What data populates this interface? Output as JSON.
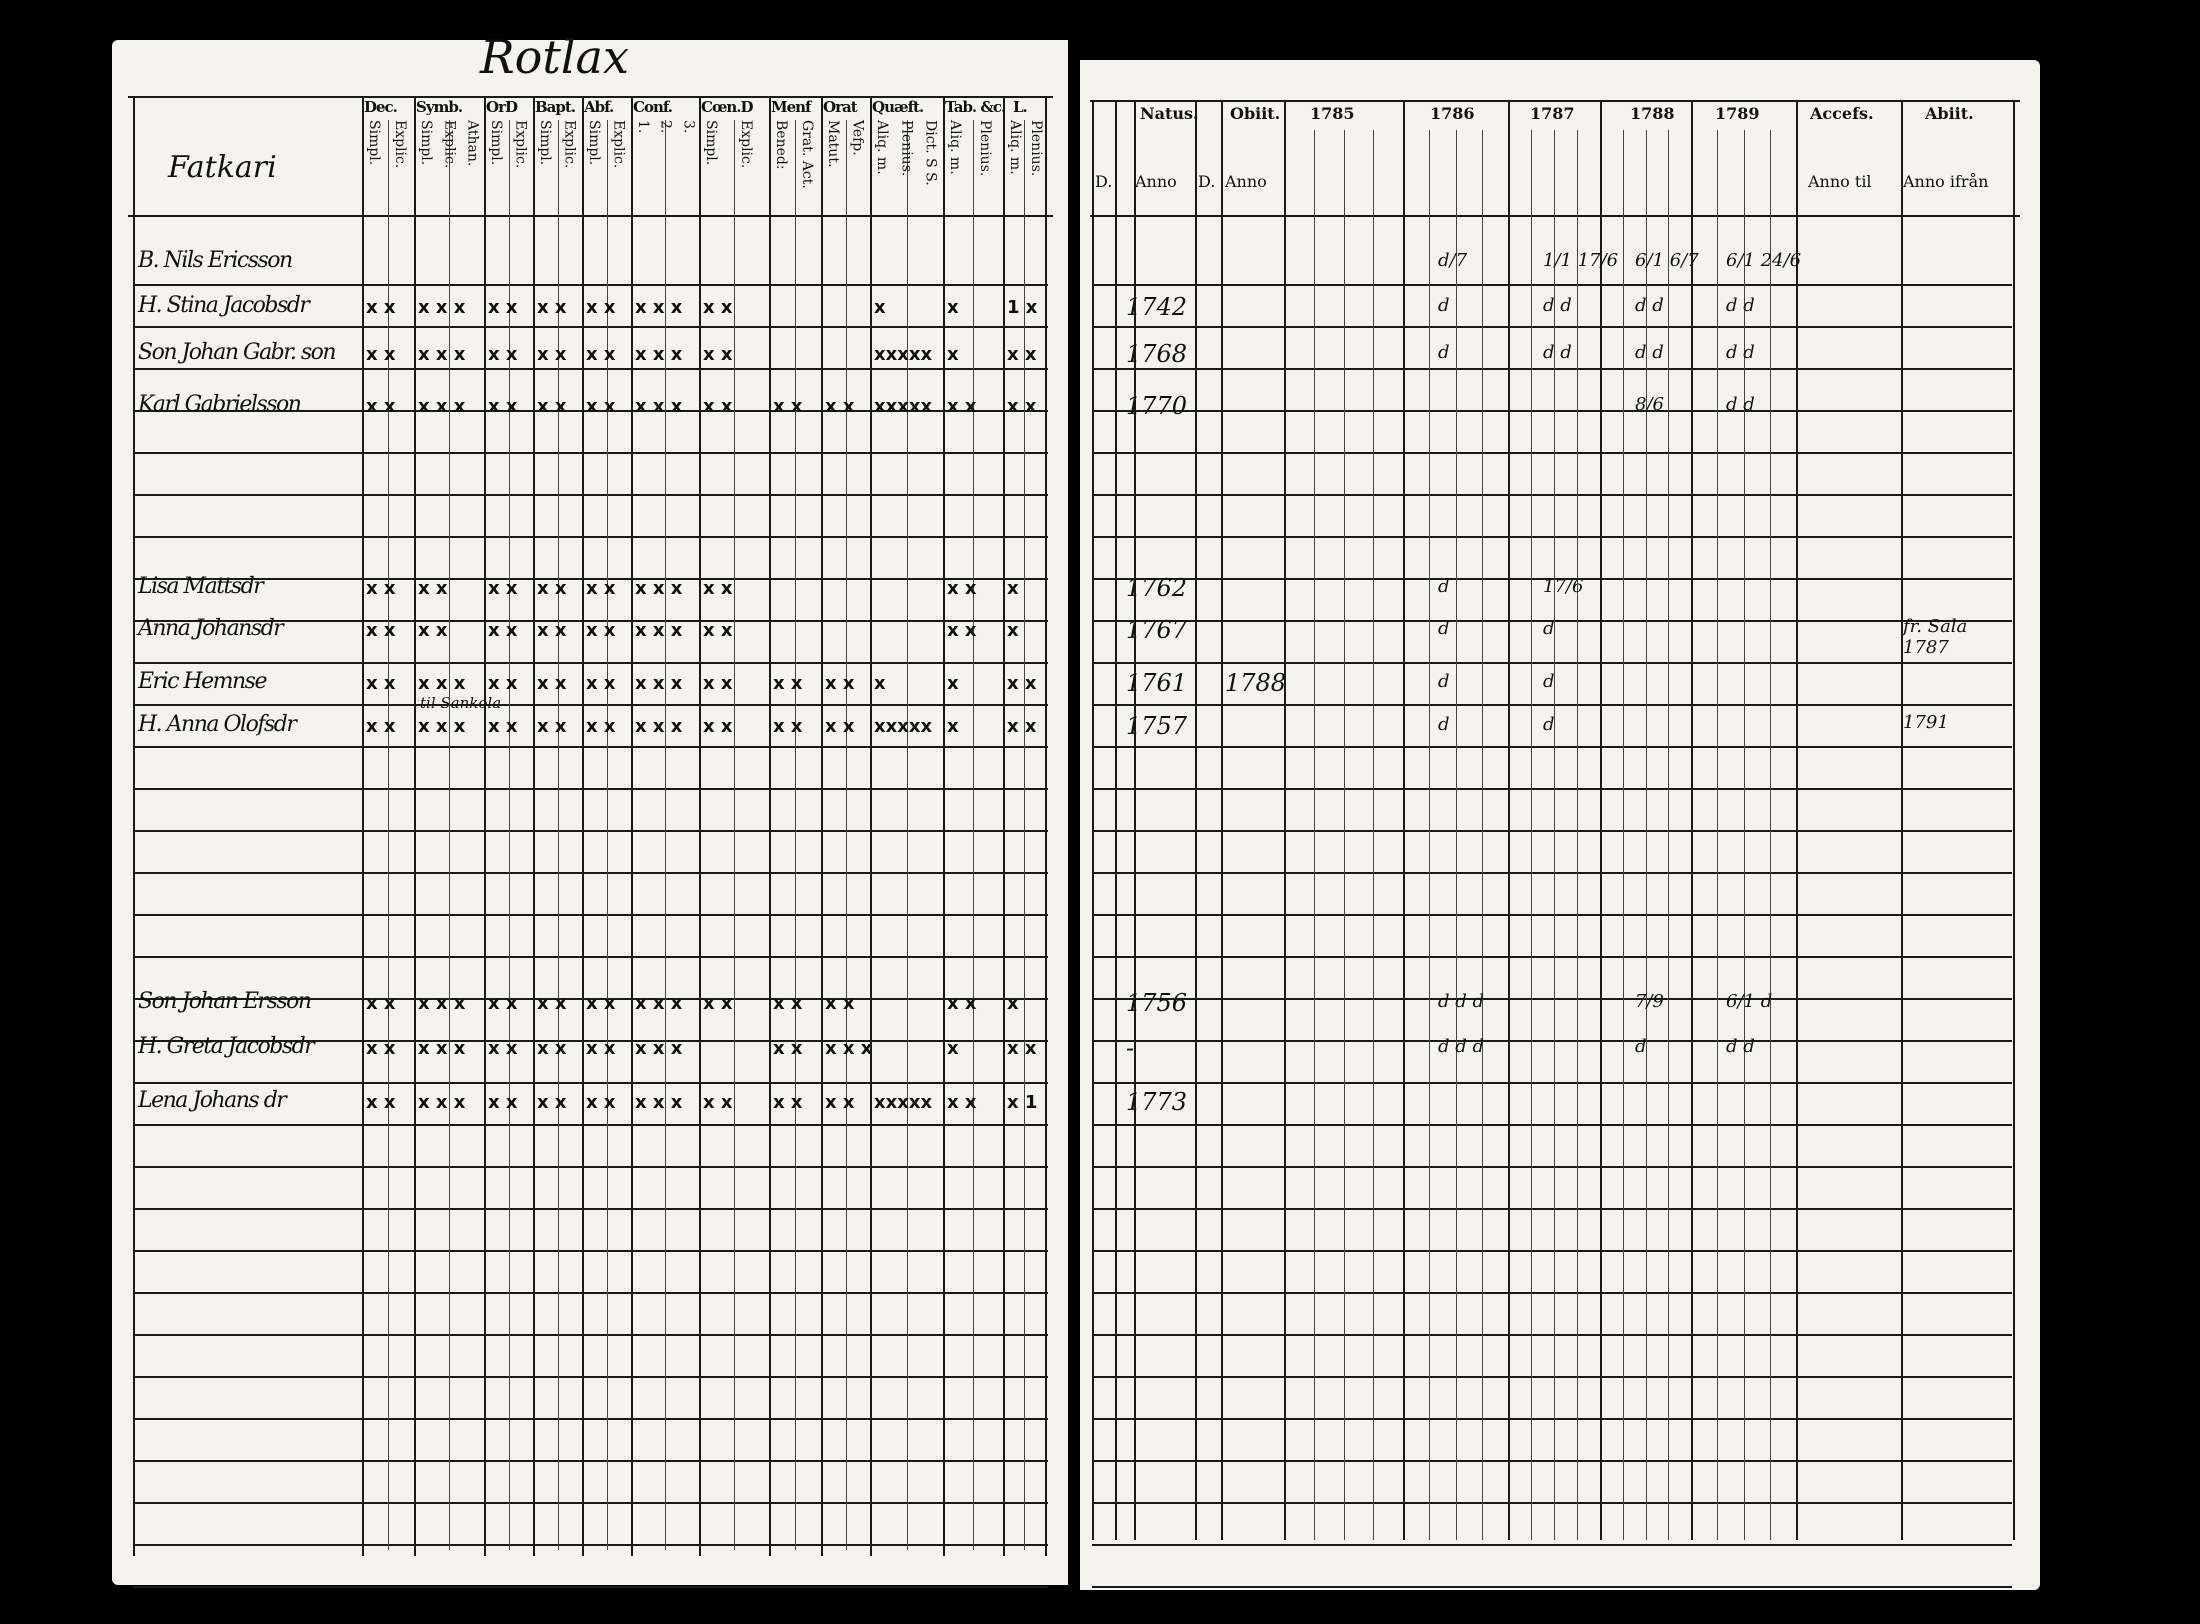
{
  "left_page": {
    "village": "Rotlax",
    "name_header": "Fatkari",
    "columns": [
      {
        "label": "Dec.",
        "subs": [
          "Simpl.",
          "Explic."
        ]
      },
      {
        "label": "Symb.",
        "subs": [
          "Simpl.",
          "Explic.",
          "Athan."
        ]
      },
      {
        "label": "OrD",
        "subs": [
          "Simpl.",
          "Explic."
        ]
      },
      {
        "label": "Bapt.",
        "subs": [
          "Simpl.",
          "Explic."
        ]
      },
      {
        "label": "Abf.",
        "subs": [
          "Simpl.",
          "Explic."
        ]
      },
      {
        "label": "Conf.",
        "subs": [
          "1.",
          "2.",
          "3."
        ]
      },
      {
        "label": "Cœn.D",
        "subs": [
          "Simpl.",
          "Explic."
        ]
      },
      {
        "label": "Menf",
        "subs": [
          "Bened:",
          "Grat. Act."
        ]
      },
      {
        "label": "Orat",
        "subs": [
          "Matut.",
          "Vefp."
        ]
      },
      {
        "label": "Quæft.",
        "subs": [
          "Aliq. m.",
          "Plenius.",
          "Dict. S S."
        ]
      },
      {
        "label": "Tab. &c.",
        "subs": [
          "Aliq. m.",
          "Plenius."
        ]
      },
      {
        "label": "L.",
        "subs": [
          "Aliq. m.",
          "Plenius."
        ]
      }
    ],
    "annotation": "til Sankola"
  },
  "right_page": {
    "headers": [
      "Natus.",
      "Obiit.",
      "1785",
      "1786",
      "1787",
      "1788",
      "1789",
      "Accefs.",
      "Abiit."
    ],
    "subheaders": {
      "natus_d": "D.",
      "natus_anno": "Anno",
      "obiit_d": "D.",
      "obiit_anno": "Anno",
      "accessit": "Anno til",
      "abiit": "Anno ifrån"
    }
  },
  "rows": [
    {
      "name": "B. Nils Ericsson",
      "marks": [
        "",
        "",
        "",
        "",
        "",
        "",
        "",
        "",
        "",
        "",
        "",
        ""
      ],
      "natus": "",
      "obiit": "",
      "years": [
        "",
        "d/7",
        "1/1 17/6",
        "6/1 6/7",
        "6/1 24/6"
      ],
      "accessit": "",
      "abiit": ""
    },
    {
      "name": "H. Stina Jacobsdr",
      "marks": [
        "x x",
        "x x x",
        "x x",
        "x x",
        "x x",
        "x x x",
        "x x",
        "",
        "",
        "x",
        "x",
        "1 x"
      ],
      "natus": "1742",
      "obiit": "",
      "years": [
        "",
        "d",
        "d d",
        "d d",
        "d d"
      ],
      "accessit": "",
      "abiit": ""
    },
    {
      "name": "Son Johan Gabr. son",
      "marks": [
        "x x",
        "x x x",
        "x x",
        "x x",
        "x x",
        "x x x",
        "x x",
        "",
        "",
        "xxxxx",
        "x",
        "x x"
      ],
      "natus": "1768",
      "obiit": "",
      "years": [
        "",
        "d",
        "d d",
        "d d",
        "d d"
      ],
      "accessit": "",
      "abiit": ""
    },
    {
      "name": "Karl Gabrielsson",
      "marks": [
        "x x",
        "x x x",
        "x x",
        "x x",
        "x x",
        "x x x",
        "x x",
        "x x",
        "x x",
        "xxxxx",
        "x x",
        "x x"
      ],
      "natus": "1770",
      "obiit": "",
      "years": [
        "",
        "",
        "",
        "8/6",
        "d d"
      ],
      "accessit": "",
      "abiit": ""
    },
    {
      "name": "Lisa Mattsdr",
      "marks": [
        "x x",
        "x x",
        "x x",
        "x x",
        "x x",
        "x x x",
        "x x",
        "",
        "",
        "",
        "x x",
        "x"
      ],
      "natus": "1762",
      "obiit": "",
      "years": [
        "",
        "d",
        "17/6",
        "",
        ""
      ],
      "accessit": "",
      "abiit": ""
    },
    {
      "name": "Anna Johansdr",
      "marks": [
        "x x",
        "x x",
        "x x",
        "x x",
        "x x",
        "x x x",
        "x x",
        "",
        "",
        "",
        "x x",
        "x"
      ],
      "natus": "1767",
      "obiit": "",
      "years": [
        "",
        "d",
        "d",
        "",
        ""
      ],
      "accessit": "",
      "abiit": "fr. Sala 1787"
    },
    {
      "name": "Eric Hemnse",
      "marks": [
        "x x",
        "x x x",
        "x x",
        "x x",
        "x x",
        "x x x",
        "x x",
        "x x",
        "x x",
        "x",
        "x",
        "x x"
      ],
      "natus": "1761",
      "obiit": "1788",
      "years": [
        "",
        "d",
        "d",
        "",
        ""
      ],
      "accessit": "",
      "abiit": ""
    },
    {
      "name": "H. Anna Olofsdr",
      "marks": [
        "x x",
        "x x x",
        "x x",
        "x x",
        "x x",
        "x x x",
        "x x",
        "x x",
        "x x",
        "xxxxx",
        "x",
        "x x"
      ],
      "natus": "1757",
      "obiit": "",
      "years": [
        "",
        "d",
        "d",
        "",
        ""
      ],
      "accessit": "",
      "abiit": "1791"
    },
    {
      "name": "Son Johan Ersson",
      "marks": [
        "x x",
        "x x x",
        "x x",
        "x x",
        "x x",
        "x x x",
        "x x",
        "x x",
        "x x",
        "",
        "x x",
        "x"
      ],
      "natus": "1756",
      "obiit": "",
      "years": [
        "",
        "d d d",
        "",
        "7/9",
        "6/1 d"
      ],
      "accessit": "",
      "abiit": ""
    },
    {
      "name": "H. Greta Jacobsdr",
      "marks": [
        "x x",
        "x x x",
        "x x",
        "x x",
        "x x",
        "x x x",
        "",
        "x x",
        "x x x",
        "",
        "x",
        "x x"
      ],
      "natus": "-",
      "obiit": "",
      "years": [
        "",
        "d d d",
        "",
        "d",
        "d d"
      ],
      "accessit": "",
      "abiit": ""
    },
    {
      "name": "Lena Johans dr",
      "marks": [
        "x x",
        "x x x",
        "x x",
        "x x",
        "x x",
        "x x x",
        "x x",
        "x x",
        "x x",
        "xxxxx",
        "x x",
        "x 1"
      ],
      "natus": "1773",
      "obiit": "",
      "years": [
        "",
        "",
        "",
        "",
        ""
      ],
      "accessit": "",
      "abiit": ""
    }
  ]
}
